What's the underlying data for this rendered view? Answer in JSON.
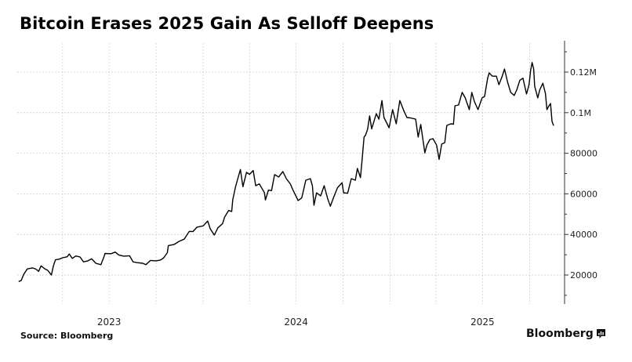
{
  "title": "Bitcoin Erases 2025 Gain As Selloff Deepens",
  "footer": {
    "source": "Source: Bloomberg",
    "brand": "Bloomberg",
    "brand_icon": "bloomberg-chart-icon"
  },
  "chart_data": {
    "type": "line",
    "title": "Bitcoin Erases 2025 Gain As Selloff Deepens",
    "xlabel": "",
    "ylabel": "",
    "ylim": [
      5000,
      135000
    ],
    "xlim": [
      "2023-01-01",
      "2025-11-25"
    ],
    "grid": true,
    "legend": "none",
    "y_axis_position": "right",
    "y_ticks": [
      {
        "value": 20000,
        "label": "20000"
      },
      {
        "value": 40000,
        "label": "40000"
      },
      {
        "value": 60000,
        "label": "60000"
      },
      {
        "value": 80000,
        "label": "80000"
      },
      {
        "value": 100000,
        "label": "0.1M"
      },
      {
        "value": 120000,
        "label": "0.12M"
      }
    ],
    "y_minor_ticks": [
      10000,
      30000,
      50000,
      70000,
      90000,
      110000,
      130000
    ],
    "x_gridlines": [
      "2023-04-01",
      "2023-07-01",
      "2023-10-01",
      "2024-01-01",
      "2024-04-01",
      "2024-07-01",
      "2024-10-01",
      "2025-01-01",
      "2025-04-01",
      "2025-07-01",
      "2025-10-01"
    ],
    "x_ticks": [
      {
        "date": "2023-07-01",
        "label": "2023"
      },
      {
        "date": "2024-07-01",
        "label": "2024"
      },
      {
        "date": "2025-07-01",
        "label": "2025"
      }
    ],
    "series": [
      {
        "name": "Bitcoin",
        "color": "#000000",
        "points": [
          [
            "2023-01-05",
            16800
          ],
          [
            "2023-01-10",
            17300
          ],
          [
            "2023-01-15",
            20400
          ],
          [
            "2023-01-22",
            23000
          ],
          [
            "2023-02-01",
            23500
          ],
          [
            "2023-02-08",
            22900
          ],
          [
            "2023-02-13",
            21800
          ],
          [
            "2023-02-18",
            24500
          ],
          [
            "2023-02-25",
            23100
          ],
          [
            "2023-03-03",
            22300
          ],
          [
            "2023-03-10",
            20000
          ],
          [
            "2023-03-14",
            24500
          ],
          [
            "2023-03-18",
            27500
          ],
          [
            "2023-03-25",
            27800
          ],
          [
            "2023-04-01",
            28500
          ],
          [
            "2023-04-10",
            29000
          ],
          [
            "2023-04-14",
            30400
          ],
          [
            "2023-04-20",
            28200
          ],
          [
            "2023-04-27",
            29400
          ],
          [
            "2023-05-05",
            28900
          ],
          [
            "2023-05-12",
            26500
          ],
          [
            "2023-05-20",
            26900
          ],
          [
            "2023-05-28",
            28000
          ],
          [
            "2023-06-05",
            25800
          ],
          [
            "2023-06-15",
            25100
          ],
          [
            "2023-06-21",
            29000
          ],
          [
            "2023-06-23",
            30600
          ],
          [
            "2023-07-05",
            30500
          ],
          [
            "2023-07-13",
            31300
          ],
          [
            "2023-07-20",
            29900
          ],
          [
            "2023-07-30",
            29300
          ],
          [
            "2023-08-10",
            29500
          ],
          [
            "2023-08-17",
            26500
          ],
          [
            "2023-08-25",
            26100
          ],
          [
            "2023-09-05",
            25800
          ],
          [
            "2023-09-11",
            25100
          ],
          [
            "2023-09-20",
            27200
          ],
          [
            "2023-10-01",
            27000
          ],
          [
            "2023-10-10",
            27400
          ],
          [
            "2023-10-16",
            28500
          ],
          [
            "2023-10-23",
            31000
          ],
          [
            "2023-10-25",
            34500
          ],
          [
            "2023-11-05",
            35000
          ],
          [
            "2023-11-15",
            36600
          ],
          [
            "2023-11-25",
            37700
          ],
          [
            "2023-12-05",
            41500
          ],
          [
            "2023-12-12",
            41400
          ],
          [
            "2023-12-20",
            43600
          ],
          [
            "2024-01-01",
            44200
          ],
          [
            "2024-01-10",
            46600
          ],
          [
            "2024-01-15",
            42800
          ],
          [
            "2024-01-23",
            39700
          ],
          [
            "2024-01-30",
            43300
          ],
          [
            "2024-02-08",
            45300
          ],
          [
            "2024-02-12",
            48500
          ],
          [
            "2024-02-20",
            51800
          ],
          [
            "2024-02-26",
            51300
          ],
          [
            "2024-02-28",
            57000
          ],
          [
            "2024-03-04",
            63000
          ],
          [
            "2024-03-08",
            66700
          ],
          [
            "2024-03-10",
            68500
          ],
          [
            "2024-03-14",
            72000
          ],
          [
            "2024-03-19",
            63500
          ],
          [
            "2024-03-26",
            70600
          ],
          [
            "2024-04-01",
            69600
          ],
          [
            "2024-04-08",
            71500
          ],
          [
            "2024-04-13",
            64000
          ],
          [
            "2024-04-20",
            64900
          ],
          [
            "2024-04-30",
            60600
          ],
          [
            "2024-05-02",
            57000
          ],
          [
            "2024-05-08",
            61900
          ],
          [
            "2024-05-14",
            61600
          ],
          [
            "2024-05-20",
            69500
          ],
          [
            "2024-05-28",
            68300
          ],
          [
            "2024-06-05",
            71000
          ],
          [
            "2024-06-12",
            67500
          ],
          [
            "2024-06-20",
            64800
          ],
          [
            "2024-06-25",
            61800
          ],
          [
            "2024-07-05",
            56700
          ],
          [
            "2024-07-12",
            58000
          ],
          [
            "2024-07-20",
            66700
          ],
          [
            "2024-07-29",
            67500
          ],
          [
            "2024-08-02",
            64000
          ],
          [
            "2024-08-05",
            54400
          ],
          [
            "2024-08-10",
            60500
          ],
          [
            "2024-08-18",
            59000
          ],
          [
            "2024-08-25",
            64000
          ],
          [
            "2024-09-01",
            57500
          ],
          [
            "2024-09-06",
            53900
          ],
          [
            "2024-09-12",
            58000
          ],
          [
            "2024-09-20",
            63000
          ],
          [
            "2024-09-29",
            65500
          ],
          [
            "2024-10-02",
            60500
          ],
          [
            "2024-10-10",
            60300
          ],
          [
            "2024-10-17",
            67500
          ],
          [
            "2024-10-25",
            66700
          ],
          [
            "2024-10-29",
            72500
          ],
          [
            "2024-11-04",
            68000
          ],
          [
            "2024-11-07",
            76400
          ],
          [
            "2024-11-11",
            88000
          ],
          [
            "2024-11-14",
            89000
          ],
          [
            "2024-11-18",
            91800
          ],
          [
            "2024-11-22",
            98400
          ],
          [
            "2024-11-26",
            92000
          ],
          [
            "2024-12-05",
            99500
          ],
          [
            "2024-12-10",
            96800
          ],
          [
            "2024-12-16",
            106000
          ],
          [
            "2024-12-20",
            97600
          ],
          [
            "2024-12-30",
            92600
          ],
          [
            "2025-01-06",
            101500
          ],
          [
            "2025-01-13",
            94500
          ],
          [
            "2025-01-20",
            106000
          ],
          [
            "2025-01-27",
            101500
          ],
          [
            "2025-02-03",
            97600
          ],
          [
            "2025-02-10",
            97400
          ],
          [
            "2025-02-20",
            96800
          ],
          [
            "2025-02-25",
            88000
          ],
          [
            "2025-03-02",
            94200
          ],
          [
            "2025-03-10",
            80200
          ],
          [
            "2025-03-14",
            84000
          ],
          [
            "2025-03-20",
            86800
          ],
          [
            "2025-03-26",
            87200
          ],
          [
            "2025-04-02",
            84000
          ],
          [
            "2025-04-07",
            77000
          ],
          [
            "2025-04-12",
            84500
          ],
          [
            "2025-04-18",
            85200
          ],
          [
            "2025-04-22",
            93700
          ],
          [
            "2025-04-30",
            94500
          ],
          [
            "2025-05-05",
            94300
          ],
          [
            "2025-05-08",
            103400
          ],
          [
            "2025-05-15",
            103800
          ],
          [
            "2025-05-22",
            110000
          ],
          [
            "2025-05-28",
            107300
          ],
          [
            "2025-06-05",
            101500
          ],
          [
            "2025-06-10",
            110000
          ],
          [
            "2025-06-15",
            105500
          ],
          [
            "2025-06-22",
            101500
          ],
          [
            "2025-06-30",
            107300
          ],
          [
            "2025-07-05",
            108000
          ],
          [
            "2025-07-11",
            117000
          ],
          [
            "2025-07-14",
            119600
          ],
          [
            "2025-07-20",
            118000
          ],
          [
            "2025-07-28",
            118000
          ],
          [
            "2025-08-02",
            113800
          ],
          [
            "2025-08-08",
            117700
          ],
          [
            "2025-08-13",
            121500
          ],
          [
            "2025-08-19",
            115000
          ],
          [
            "2025-08-25",
            110000
          ],
          [
            "2025-09-01",
            108500
          ],
          [
            "2025-09-06",
            111300
          ],
          [
            "2025-09-12",
            116000
          ],
          [
            "2025-09-18",
            117000
          ],
          [
            "2025-09-25",
            109200
          ],
          [
            "2025-09-30",
            113800
          ],
          [
            "2025-10-03",
            120800
          ],
          [
            "2025-10-06",
            124700
          ],
          [
            "2025-10-09",
            121500
          ],
          [
            "2025-10-11",
            113000
          ],
          [
            "2025-10-17",
            107300
          ],
          [
            "2025-10-21",
            111300
          ],
          [
            "2025-10-27",
            114500
          ],
          [
            "2025-11-01",
            109500
          ],
          [
            "2025-11-04",
            101500
          ],
          [
            "2025-11-08",
            103400
          ],
          [
            "2025-11-11",
            104500
          ],
          [
            "2025-11-14",
            95700
          ],
          [
            "2025-11-17",
            93600
          ]
        ]
      }
    ]
  }
}
